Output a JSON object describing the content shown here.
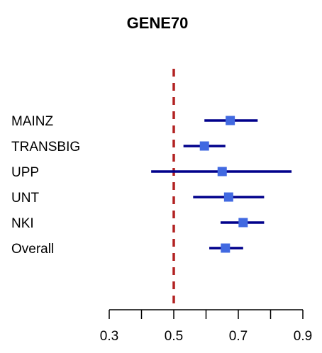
{
  "chart_data": {
    "type": "forest",
    "title": "GENE70",
    "xlim": [
      0.3,
      0.9
    ],
    "xticks": [
      0.3,
      0.4,
      0.5,
      0.6,
      0.7,
      0.8,
      0.9
    ],
    "xtick_labels": [
      "0.3",
      "0.5",
      "0.7",
      "0.9"
    ],
    "reference_line": 0.5,
    "rows": [
      {
        "label": "MAINZ",
        "estimate": 0.675,
        "lower": 0.595,
        "upper": 0.76
      },
      {
        "label": "TRANSBIG",
        "estimate": 0.595,
        "lower": 0.53,
        "upper": 0.66
      },
      {
        "label": "UPP",
        "estimate": 0.65,
        "lower": 0.43,
        "upper": 0.865
      },
      {
        "label": "UNT",
        "estimate": 0.67,
        "lower": 0.56,
        "upper": 0.78
      },
      {
        "label": "NKI",
        "estimate": 0.715,
        "lower": 0.645,
        "upper": 0.78
      },
      {
        "label": "Overall",
        "estimate": 0.66,
        "lower": 0.61,
        "upper": 0.715
      }
    ],
    "colors": {
      "ci_line": "#00008B",
      "point": "#4169E1",
      "reference": "#B22222",
      "axis": "#000000"
    },
    "grid": false
  }
}
